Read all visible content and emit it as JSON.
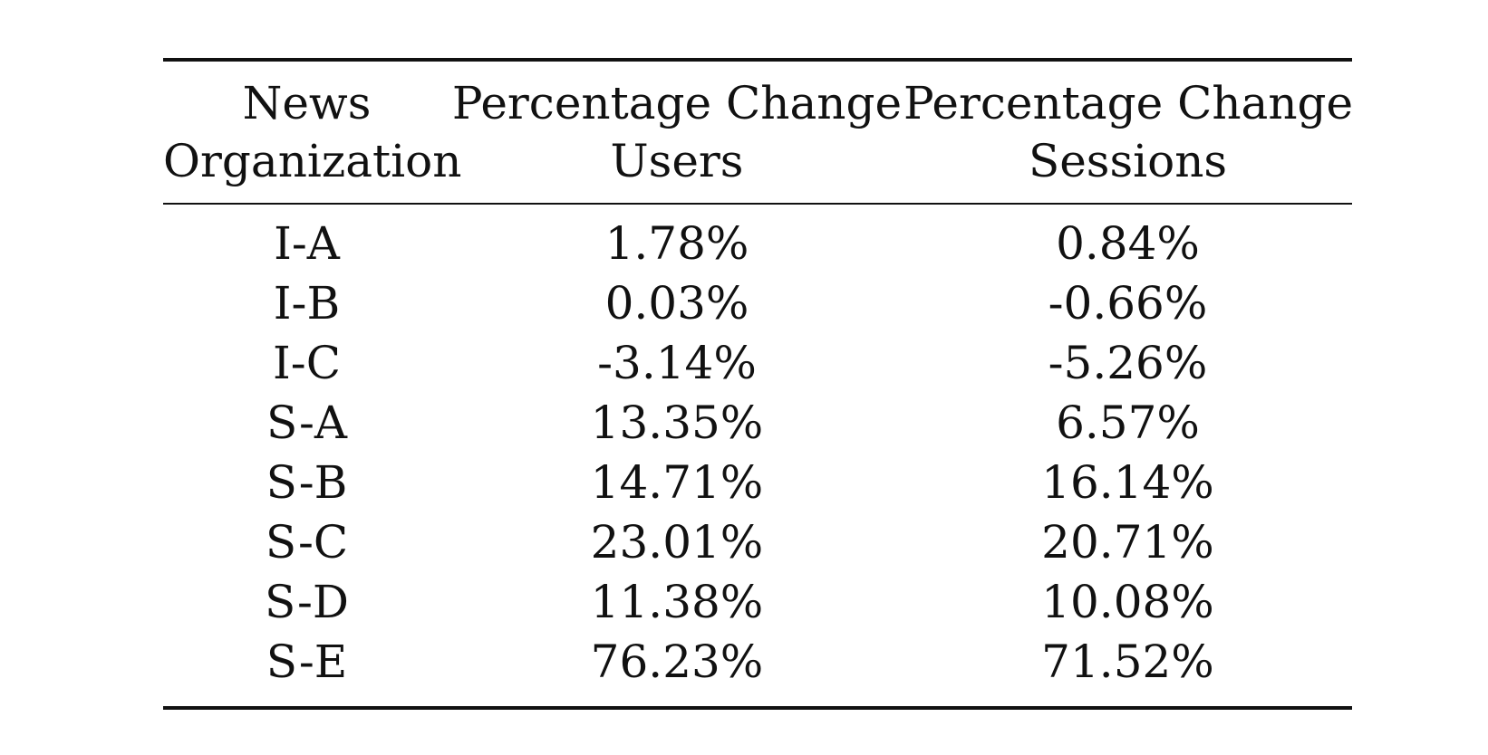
{
  "table": {
    "headers": [
      [
        "News",
        "Organization"
      ],
      [
        "Percentage Change",
        "Users"
      ],
      [
        "Percentage Change",
        "Sessions"
      ]
    ],
    "rows": [
      [
        "I-A",
        "1.78%",
        "0.84%"
      ],
      [
        "I-B",
        "0.03%",
        "-0.66%"
      ],
      [
        "I-C",
        "-3.14%",
        "-5.26%"
      ],
      [
        "S-A",
        "13.35%",
        "6.57%"
      ],
      [
        "S-B",
        "14.71%",
        "16.14%"
      ],
      [
        "S-C",
        "23.01%",
        "20.71%"
      ],
      [
        "S-D",
        "11.38%",
        "10.08%"
      ],
      [
        "S-E",
        "76.23%",
        "71.52%"
      ]
    ]
  }
}
